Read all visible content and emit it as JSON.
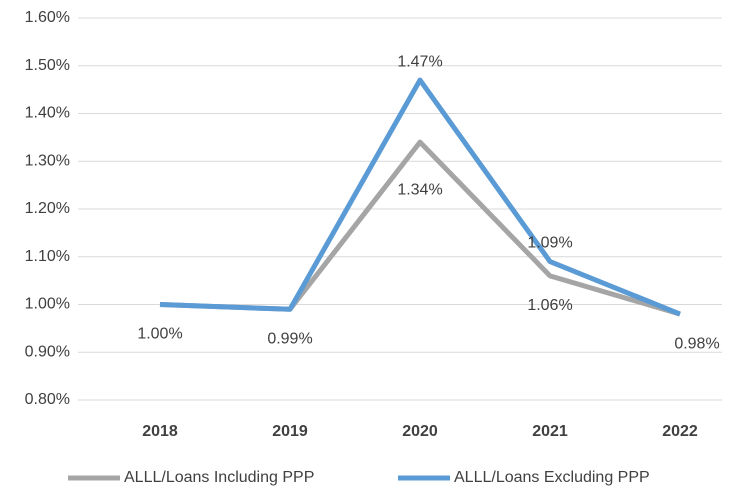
{
  "chart_data": {
    "type": "line",
    "categories": [
      "2018",
      "2019",
      "2020",
      "2021",
      "2022"
    ],
    "series": [
      {
        "name": "ALLL/Loans Including PPP",
        "color": "#a5a5a5",
        "values": [
          1.0,
          0.99,
          1.34,
          1.06,
          0.98
        ],
        "value_labels": [
          "1.00%",
          "0.99%",
          "1.34%",
          "1.06%",
          "0.98%"
        ]
      },
      {
        "name": "ALLL/Loans Excluding PPP",
        "color": "#5b9bd5",
        "values": [
          1.0,
          0.99,
          1.47,
          1.09,
          0.98
        ],
        "value_labels": [
          null,
          null,
          "1.47%",
          "1.09%",
          null
        ]
      }
    ],
    "ylim": [
      0.8,
      1.6
    ],
    "yticks": [
      {
        "value": 0.8,
        "label": "0.80%"
      },
      {
        "value": 0.9,
        "label": "0.90%"
      },
      {
        "value": 1.0,
        "label": "1.00%"
      },
      {
        "value": 1.1,
        "label": "1.10%"
      },
      {
        "value": 1.2,
        "label": "1.20%"
      },
      {
        "value": 1.3,
        "label": "1.30%"
      },
      {
        "value": 1.4,
        "label": "1.40%"
      },
      {
        "value": 1.5,
        "label": "1.50%"
      },
      {
        "value": 1.6,
        "label": "1.60%"
      }
    ],
    "grid": true,
    "legend": "bottom"
  }
}
